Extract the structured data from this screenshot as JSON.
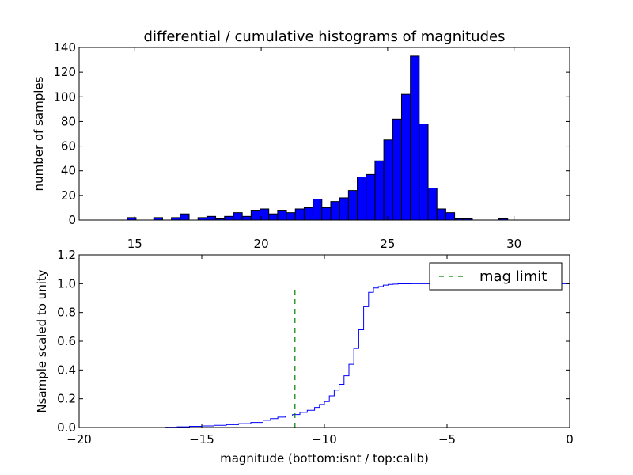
{
  "chart_data": [
    {
      "type": "bar",
      "title": "differential / cumulative histograms of magnitudes",
      "xlabel": "",
      "ylabel": "number of samples",
      "xlim": [
        12.8,
        32.2
      ],
      "ylim": [
        0,
        140
      ],
      "xticks": [
        "15",
        "20",
        "25",
        "30"
      ],
      "yticks": [
        "0",
        "20",
        "40",
        "60",
        "80",
        "100",
        "120",
        "140"
      ],
      "bin_edges": [
        14.7,
        15.05,
        15.75,
        16.1,
        16.45,
        16.8,
        17.15,
        17.5,
        17.85,
        18.2,
        18.55,
        18.9,
        19.25,
        19.6,
        19.95,
        20.3,
        20.65,
        21.0,
        21.35,
        21.7,
        22.05,
        22.4,
        22.75,
        23.1,
        23.45,
        23.8,
        24.15,
        24.5,
        24.85,
        25.2,
        25.55,
        25.9,
        26.25,
        26.6,
        26.95,
        27.3,
        27.65,
        28.0,
        28.35,
        29.4,
        29.75
      ],
      "bars": [
        2,
        0,
        2,
        0,
        2,
        5,
        0,
        2,
        3,
        1,
        3,
        6,
        3,
        8,
        9,
        5,
        8,
        6,
        9,
        10,
        17,
        10,
        15,
        18,
        24,
        35,
        37,
        48,
        65,
        82,
        102,
        133,
        78,
        26,
        9,
        6,
        1,
        1,
        0,
        1
      ],
      "grid": false,
      "colors": {
        "bars": "#0000ff",
        "edge": "#000000"
      }
    },
    {
      "type": "line",
      "title": "",
      "xlabel": "magnitude (bottom:isnt / top:calib)",
      "ylabel": "Nsample scaled to unity",
      "xlim": [
        -20,
        0
      ],
      "ylim": [
        0,
        1.2
      ],
      "xticks": [
        "−20",
        "−15",
        "−10",
        "−5",
        "0"
      ],
      "yticks": [
        "0.0",
        "0.2",
        "0.4",
        "0.6",
        "0.8",
        "1.0",
        "1.2"
      ],
      "grid": false,
      "series": [
        {
          "name": "",
          "style": "step",
          "color": "#0000ff",
          "x": [
            -20,
            -16.5,
            -16.0,
            -15.5,
            -15.0,
            -14.5,
            -14.0,
            -13.5,
            -13.0,
            -12.5,
            -12.2,
            -11.9,
            -11.6,
            -11.3,
            -11.0,
            -10.7,
            -10.4,
            -10.2,
            -10.0,
            -9.8,
            -9.6,
            -9.4,
            -9.2,
            -9.0,
            -8.8,
            -8.6,
            -8.4,
            -8.2,
            -8.0,
            -7.8,
            -7.6,
            -7.4,
            -7.2,
            -7.0,
            -6.5,
            -6.0,
            -5.5,
            -5.0,
            -0.1,
            -0.05,
            0
          ],
          "y": [
            0.0,
            0.002,
            0.005,
            0.008,
            0.011,
            0.015,
            0.02,
            0.027,
            0.035,
            0.05,
            0.062,
            0.072,
            0.08,
            0.09,
            0.105,
            0.12,
            0.14,
            0.16,
            0.18,
            0.22,
            0.26,
            0.3,
            0.36,
            0.44,
            0.55,
            0.68,
            0.84,
            0.94,
            0.97,
            0.98,
            0.99,
            0.995,
            0.997,
            0.999,
            1.0,
            1.0,
            1.0,
            1.0,
            1.0,
            1.0,
            0.0
          ]
        },
        {
          "name": "mag limit",
          "style": "dashed",
          "color": "#008000",
          "x": [
            -11.2,
            -11.2
          ],
          "y": [
            0.0,
            0.97
          ]
        }
      ],
      "legend": {
        "placement": "top-right",
        "entries": [
          "mag limit"
        ]
      }
    }
  ]
}
